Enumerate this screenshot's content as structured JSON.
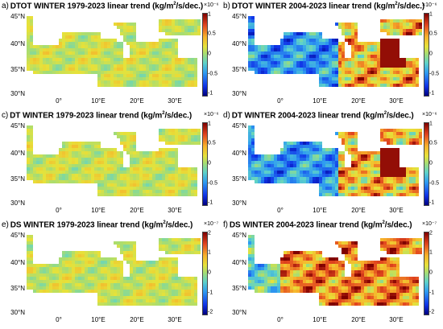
{
  "panels": [
    {
      "id": "a",
      "letter": "a)",
      "title": "DTOT WINTER 1979-2023 linear trend (kg/m",
      "sup": "2",
      "title_end": "/s/dec.)",
      "scale": "×10⁻⁶",
      "period": "1979-2023",
      "cbar_ticks": [
        "1",
        "0.5",
        "0",
        "-0.5",
        "-1"
      ],
      "lat_labels": [
        "45°N",
        "40°N",
        "35°N",
        "30°N"
      ],
      "lon_labels": [
        "0°",
        "10°E",
        "20°E",
        "30°E"
      ],
      "intensity": "weak"
    },
    {
      "id": "b",
      "letter": "b)",
      "title": "DTOT WINTER 2004-2023 linear trend (kg/m",
      "sup": "2",
      "title_end": "/s/dec.)",
      "scale": "×10⁻⁶",
      "period": "2004-2023",
      "cbar_ticks": [
        "1",
        "0.5",
        "0",
        "-0.5",
        "-1"
      ],
      "lat_labels": [
        "45°N",
        "40°N",
        "35°N",
        "30°N"
      ],
      "lon_labels": [
        "0°",
        "10°E",
        "20°E",
        "30°E"
      ],
      "intensity": "strong"
    },
    {
      "id": "c",
      "letter": "c)",
      "title": "DT WINTER 1979-2023 linear trend (kg/m",
      "sup": "2",
      "title_end": "/s/dec.)",
      "scale": "×10⁻⁶",
      "period": "1979-2023",
      "cbar_ticks": [
        "1",
        "0.5",
        "0",
        "-0.5",
        "-1"
      ],
      "lat_labels": [
        "45°N",
        "40°N",
        "35°N",
        "30°N"
      ],
      "lon_labels": [
        "0°",
        "10°E",
        "20°E",
        "30°E"
      ],
      "intensity": "weak"
    },
    {
      "id": "d",
      "letter": "d)",
      "title": "DT WINTER 2004-2023 linear trend (kg/m",
      "sup": "2",
      "title_end": "/s/dec.)",
      "scale": "×10⁻⁶",
      "period": "2004-2023",
      "cbar_ticks": [
        "1",
        "0.5",
        "0",
        "-0.5",
        "-1"
      ],
      "lat_labels": [
        "45°N",
        "40°N",
        "35°N",
        "30°N"
      ],
      "lon_labels": [
        "0°",
        "10°E",
        "20°E",
        "30°E"
      ],
      "intensity": "strong"
    },
    {
      "id": "e",
      "letter": "e)",
      "title": "DS WINTER 1979-2023 linear trend (kg/m",
      "sup": "2",
      "title_end": "/s/dec.)",
      "scale": "×10⁻⁷",
      "period": "1979-2023",
      "cbar_ticks": [
        "2",
        "1",
        "0",
        "-1",
        "-2"
      ],
      "lat_labels": [
        "45°N",
        "40°N",
        "35°N",
        "30°N"
      ],
      "lon_labels": [
        "0°",
        "10°E",
        "20°E",
        "30°E"
      ],
      "intensity": "weak"
    },
    {
      "id": "f",
      "letter": "f)",
      "title": "DS WINTER 2004-2023 linear trend (kg/m",
      "sup": "2",
      "title_end": "/s/dec.)",
      "scale": "×10⁻⁷",
      "period": "2004-2023",
      "cbar_ticks": [
        "2",
        "1",
        "0",
        "-1",
        "-2"
      ],
      "lat_labels": [
        "45°N",
        "40°N",
        "35°N",
        "30°N"
      ],
      "lon_labels": [
        "0°",
        "10°E",
        "20°E",
        "30°E"
      ],
      "intensity": "strong_pos"
    }
  ],
  "colors": {
    "land": "#ffffff",
    "mid": "#a6d96a",
    "yellow": "#e6e23a",
    "red": "#c0181a",
    "blue": "#2c5fd0",
    "cyan": "#5fd3c8"
  }
}
